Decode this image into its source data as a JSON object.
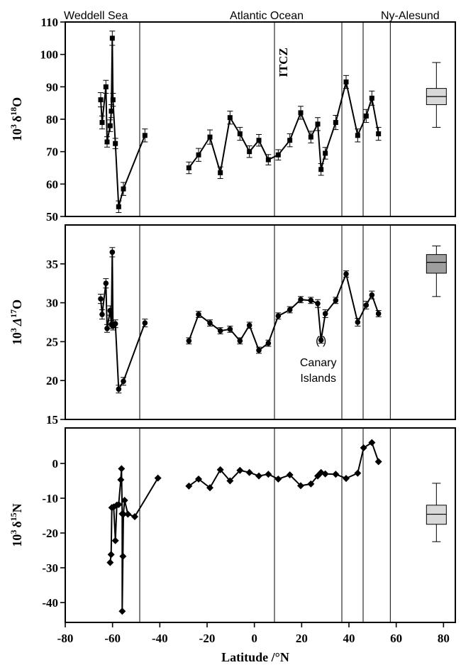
{
  "chart_data": {
    "type": "line",
    "xlabel": "Latitude /°N",
    "xlim": [
      -80,
      85
    ],
    "xticks": [
      -80,
      -60,
      -40,
      -20,
      0,
      20,
      40,
      60,
      80
    ],
    "region_labels": [
      "Weddell Sea",
      "Atlantic Ocean",
      "Ny-Alesund"
    ],
    "vertical_lines_x": [
      -48.5,
      8.5,
      37,
      46,
      57.5
    ],
    "itcz_label": "ITCZ",
    "itcz_x": 8.5,
    "panels": [
      {
        "id": "d18O",
        "ylabel_prefix": "10",
        "ylabel_sup": "3",
        "ylabel_sym": "δ",
        "ylabel_iso_sup": "18",
        "ylabel_elem": "O",
        "ylim": [
          50,
          110
        ],
        "yticks": [
          50,
          60,
          70,
          80,
          90,
          100,
          110
        ],
        "marker": "square",
        "segments": [
          [
            [
              -65,
              86,
              2.2
            ],
            [
              -64.4,
              79,
              2
            ],
            [
              -62.8,
              90,
              2
            ],
            [
              -62.3,
              73,
              1.6
            ],
            [
              -61,
              78,
              1.8
            ],
            [
              -60.5,
              82.5,
              2
            ],
            [
              -60.1,
              105,
              2.2
            ],
            [
              -59.8,
              86,
              2
            ],
            [
              -58.8,
              72.5,
              1.6
            ],
            [
              -57.4,
              53,
              1.8
            ],
            [
              -55.4,
              58.5,
              2
            ],
            [
              -46.3,
              75,
              2
            ]
          ],
          [
            [
              -27.7,
              65,
              1.8
            ],
            [
              -23.6,
              69,
              2
            ],
            [
              -18.8,
              74.5,
              2.2
            ],
            [
              -14.4,
              63.5,
              1.8
            ],
            [
              -10.3,
              80.5,
              2
            ],
            [
              -6.1,
              75.5,
              2
            ],
            [
              -2.1,
              70,
              1.8
            ],
            [
              1.9,
              73.5,
              1.8
            ],
            [
              5.9,
              67.5,
              1.6
            ],
            [
              10.1,
              69,
              1.6
            ],
            [
              15,
              73.5,
              2
            ],
            [
              19.6,
              82,
              2
            ],
            [
              23.9,
              74.5,
              1.8
            ],
            [
              26.8,
              78.5,
              2
            ],
            [
              28.2,
              64.5,
              1.8
            ],
            [
              30,
              69.5,
              1.8
            ],
            [
              34.4,
              79,
              2.2
            ],
            [
              38.8,
              91.5,
              2
            ],
            [
              43.7,
              75,
              2
            ],
            [
              47.3,
              81,
              2
            ],
            [
              49.7,
              86.5,
              2.2
            ],
            [
              52.5,
              75.5,
              2
            ]
          ]
        ],
        "box": {
          "x": 77,
          "min": 77.5,
          "q1": 84.5,
          "median": 87,
          "q3": 89.5,
          "max": 97.5,
          "fill": "#d9d9d9"
        }
      },
      {
        "id": "D17O",
        "ylabel_prefix": "10",
        "ylabel_sup": "3",
        "ylabel_sym": "Δ",
        "ylabel_iso_sup": "17",
        "ylabel_elem": "O",
        "ylim": [
          15,
          40
        ],
        "yticks": [
          15,
          20,
          25,
          30,
          35
        ],
        "marker": "circle",
        "segments": [
          [
            [
              -65,
              30.5,
              0.6
            ],
            [
              -64.4,
              28.5,
              0.6
            ],
            [
              -62.8,
              32.5,
              0.6
            ],
            [
              -62.3,
              26.7,
              0.5
            ],
            [
              -61,
              29,
              0.6
            ],
            [
              -60.5,
              27.2,
              0.5
            ],
            [
              -60.1,
              36.5,
              0.6
            ],
            [
              -59.8,
              27,
              0.5
            ],
            [
              -58.8,
              27.3,
              0.5
            ],
            [
              -57.4,
              18.9,
              0.5
            ],
            [
              -55.4,
              19.9,
              0.5
            ],
            [
              -46.3,
              27.4,
              0.5
            ]
          ],
          [
            [
              -27.7,
              25.1,
              0.4
            ],
            [
              -23.6,
              28.5,
              0.4
            ],
            [
              -18.8,
              27.4,
              0.4
            ],
            [
              -14.4,
              26.4,
              0.4
            ],
            [
              -10.3,
              26.6,
              0.4
            ],
            [
              -6.1,
              25.1,
              0.4
            ],
            [
              -2.1,
              27.1,
              0.4
            ],
            [
              1.9,
              23.9,
              0.4
            ],
            [
              5.9,
              24.8,
              0.4
            ],
            [
              10.1,
              28.3,
              0.4
            ],
            [
              15,
              29.1,
              0.4
            ],
            [
              19.6,
              30.4,
              0.4
            ],
            [
              23.9,
              30.3,
              0.4
            ],
            [
              26.8,
              29.9,
              0.5
            ],
            [
              28.2,
              25.2,
              0.4
            ],
            [
              30,
              28.6,
              0.5
            ],
            [
              34.4,
              30.3,
              0.4
            ],
            [
              38.8,
              33.7,
              0.4
            ],
            [
              43.7,
              27.5,
              0.5
            ],
            [
              47.3,
              29.7,
              0.5
            ],
            [
              49.7,
              31,
              0.5
            ],
            [
              52.5,
              28.6,
              0.4
            ]
          ]
        ],
        "annotation": {
          "marker_text": "( )",
          "label_line1": "Canary",
          "label_line2": "Islands",
          "x": 28.2,
          "y": 25.2
        },
        "box": {
          "x": 77,
          "min": 30.8,
          "q1": 33.8,
          "median": 35.2,
          "q3": 36.2,
          "max": 37.3,
          "fill": "#9e9e9e"
        }
      },
      {
        "id": "d15N",
        "ylabel_prefix": "10",
        "ylabel_sup": "3",
        "ylabel_sym": "δ",
        "ylabel_iso_sup": "15",
        "ylabel_elem": "N",
        "ylim": [
          -45,
          10
        ],
        "yticks": [
          -40,
          -30,
          -20,
          -10,
          0
        ],
        "marker": "diamond",
        "segments": [
          [
            [
              -61,
              -28.5
            ],
            [
              -60.6,
              -26.2
            ],
            [
              -60.3,
              -12.7
            ],
            [
              -59.5,
              -12.5
            ],
            [
              -58.8,
              -22.2
            ],
            [
              -58.2,
              -12
            ],
            [
              -57.4,
              -11.8
            ],
            [
              -56.5,
              -4.7
            ],
            [
              -56.2,
              -1.5
            ],
            [
              -55.9,
              -14.5
            ],
            [
              -55.9,
              -42.5
            ],
            [
              -55.6,
              -26.7
            ],
            [
              -55.4,
              -14.6
            ],
            [
              -54.9,
              -10.6
            ],
            [
              -53.5,
              -14.6
            ],
            [
              -50.6,
              -15.3
            ],
            [
              -40.8,
              -4.2
            ]
          ],
          [
            [
              -27.7,
              -6.5
            ],
            [
              -23.6,
              -4.5
            ],
            [
              -18.8,
              -7
            ],
            [
              -14.4,
              -1.8
            ],
            [
              -10.3,
              -5
            ],
            [
              -6.1,
              -2
            ],
            [
              -2.1,
              -2.6
            ],
            [
              1.9,
              -3.6
            ],
            [
              5.9,
              -3.1
            ],
            [
              10.1,
              -4.5
            ],
            [
              15,
              -3.3
            ],
            [
              19.6,
              -6.4
            ],
            [
              23.9,
              -5.9
            ],
            [
              26.8,
              -3.6
            ],
            [
              28.2,
              -2.6
            ],
            [
              30,
              -3
            ],
            [
              34.4,
              -3.1
            ],
            [
              38.8,
              -4.3
            ],
            [
              43.7,
              -2.8
            ],
            [
              46.2,
              4.5
            ],
            [
              49.7,
              6
            ],
            [
              52.5,
              0.5
            ]
          ]
        ],
        "box": {
          "x": 77,
          "min": -22.5,
          "q1": -17.5,
          "median": -14.6,
          "q3": -12,
          "max": -5.7,
          "fill": "#d9d9d9"
        }
      }
    ]
  }
}
